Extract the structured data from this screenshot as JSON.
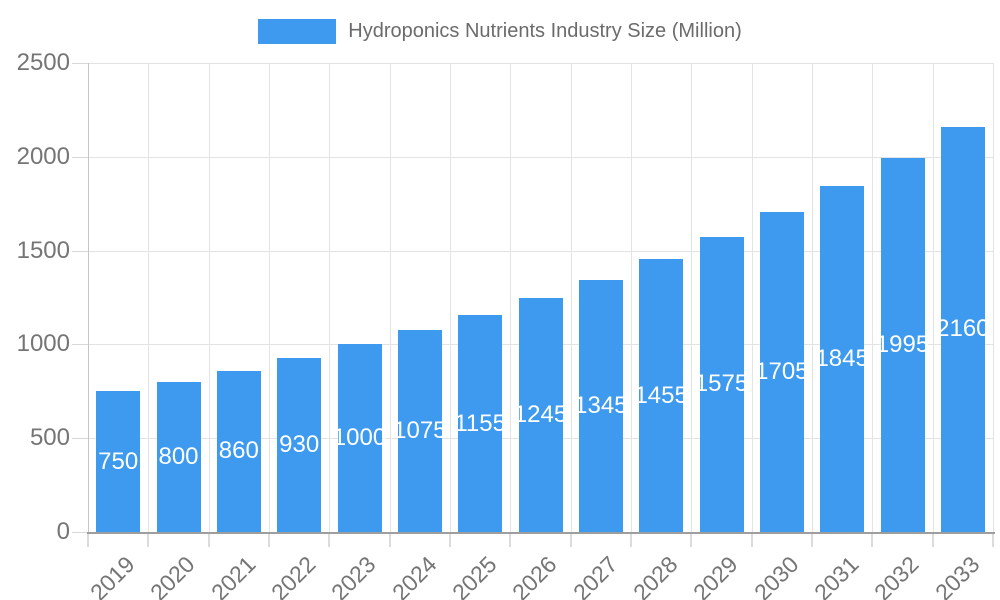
{
  "legend": {
    "label": "Hydroponics Nutrients Industry Size (Million)"
  },
  "chart_data": {
    "type": "bar",
    "title": "Hydroponics Nutrients Industry Size (Million)",
    "categories": [
      "2019",
      "2020",
      "2021",
      "2022",
      "2023",
      "2024",
      "2025",
      "2026",
      "2027",
      "2028",
      "2029",
      "2030",
      "2031",
      "2032",
      "2033"
    ],
    "series": [
      {
        "name": "Hydroponics Nutrients Industry Size (Million)",
        "values": [
          750,
          800,
          860,
          930,
          1000,
          1075,
          1155,
          1245,
          1345,
          1455,
          1575,
          1705,
          1845,
          1995,
          2160
        ]
      }
    ],
    "xlabel": "",
    "ylabel": "",
    "ylim": [
      0,
      2500
    ],
    "y_ticks": [
      0,
      500,
      1000,
      1500,
      2000,
      2500
    ],
    "grid": true,
    "legend_position": "top",
    "value_labels": "centered-inside-bars",
    "colors": {
      "bar": "#3e9aef",
      "value_label": "#ffffff",
      "axis_text": "#757575",
      "legend_text": "#6b6b6b",
      "gridline": "#e3e3e3",
      "baseline": "#9e9e9e"
    }
  }
}
